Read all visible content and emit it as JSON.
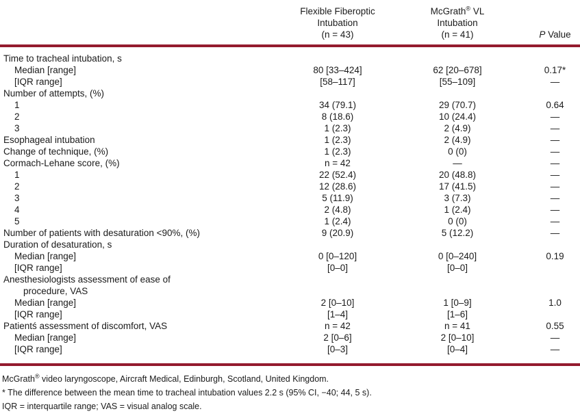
{
  "colors": {
    "rule": "#941B2E",
    "text": "#1a1a1a"
  },
  "table": {
    "header": {
      "ffi_lines": [
        "Flexible Fiberoptic",
        "Intubation",
        "(n = 43)"
      ],
      "mcg_name": "McGrath",
      "mcg_reg": "®",
      "mcg_rest": " VL",
      "mcg_line2": "Intubation",
      "mcg_line3": "(n = 41)",
      "p_italic": "P",
      "p_rest": " Value"
    },
    "rows": [
      {
        "label": "Time to tracheal intubation, s",
        "indent": 0,
        "ffi": "",
        "mcg": "",
        "p": ""
      },
      {
        "label": "Median [range]",
        "indent": 1,
        "ffi": "80 [33–424]",
        "mcg": "62 [20–678]",
        "p": "0.17*"
      },
      {
        "label": "[IQR range]",
        "indent": 1,
        "ffi": "[58–117]",
        "mcg": "[55–109]",
        "p": "—"
      },
      {
        "label": "Number of attempts, (%)",
        "indent": 0,
        "ffi": "",
        "mcg": "",
        "p": ""
      },
      {
        "label": "1",
        "indent": 1,
        "ffi": "34 (79.1)",
        "mcg": "29 (70.7)",
        "p": "0.64"
      },
      {
        "label": "2",
        "indent": 1,
        "ffi": "8 (18.6)",
        "mcg": "10 (24.4)",
        "p": "—"
      },
      {
        "label": "3",
        "indent": 1,
        "ffi": "1 (2.3)",
        "mcg": "2 (4.9)",
        "p": "—"
      },
      {
        "label": "Esophageal intubation",
        "indent": 0,
        "ffi": "1 (2.3)",
        "mcg": "2 (4.9)",
        "p": "—"
      },
      {
        "label": "Change of technique, (%)",
        "indent": 0,
        "ffi": "1 (2.3)",
        "mcg": "0 (0)",
        "p": "—"
      },
      {
        "label": "Cormach-Lehane score, (%)",
        "indent": 0,
        "ffi": "n = 42",
        "mcg": "—",
        "p": "—"
      },
      {
        "label": "1",
        "indent": 1,
        "ffi": "22 (52.4)",
        "mcg": "20 (48.8)",
        "p": "—"
      },
      {
        "label": "2",
        "indent": 1,
        "ffi": "12 (28.6)",
        "mcg": "17 (41.5)",
        "p": "—"
      },
      {
        "label": "3",
        "indent": 1,
        "ffi": "5 (11.9)",
        "mcg": "3 (7.3)",
        "p": "—"
      },
      {
        "label": "4",
        "indent": 1,
        "ffi": "2 (4.8)",
        "mcg": "1 (2.4)",
        "p": "—"
      },
      {
        "label": "5",
        "indent": 1,
        "ffi": "1 (2.4)",
        "mcg": "0 (0)",
        "p": "—"
      },
      {
        "label": "Number of patients with desaturation <90%, (%)",
        "indent": 0,
        "ffi": "9 (20.9)",
        "mcg": "5 (12.2)",
        "p": "—"
      },
      {
        "label": "Duration of desaturation, s",
        "indent": 0,
        "ffi": "",
        "mcg": "",
        "p": ""
      },
      {
        "label": "Median [range]",
        "indent": 1,
        "ffi": "0 [0–120]",
        "mcg": "0 [0–240]",
        "p": "0.19"
      },
      {
        "label": "[IQR range]",
        "indent": 1,
        "ffi": "[0–0]",
        "mcg": "[0–0]",
        "p": ""
      },
      {
        "label": "Anesthesiologists assessment of ease of",
        "indent": 0,
        "ffi": "",
        "mcg": "",
        "p": ""
      },
      {
        "label": "procedure, VAS",
        "indent": 2,
        "ffi": "",
        "mcg": "",
        "p": ""
      },
      {
        "label": "Median [range]",
        "indent": 1,
        "ffi": "2 [0–10]",
        "mcg": "1 [0–9]",
        "p": "1.0"
      },
      {
        "label": "[IQR range]",
        "indent": 1,
        "ffi": "[1–4]",
        "mcg": "[1–6]",
        "p": ""
      },
      {
        "label": "Patientś assessment of discomfort, VAS",
        "indent": 0,
        "ffi": "n = 42",
        "mcg": "n = 41",
        "p": "0.55"
      },
      {
        "label": "Median [range]",
        "indent": 1,
        "ffi": "2 [0–6]",
        "mcg": "2 [0–10]",
        "p": "—"
      },
      {
        "label": "[IQR range]",
        "indent": 1,
        "ffi": "[0–3]",
        "mcg": "[0–4]",
        "p": "—"
      }
    ]
  },
  "footnotes": {
    "line1_name": "McGrath",
    "line1_reg": "®",
    "line1_rest": " video laryngoscope, Aircraft Medical, Edinburgh, Scotland, United Kingdom.",
    "line2": "* The difference between the mean time to tracheal intubation values 2.2 s (95% CI, −40; 44, 5 s).",
    "line3": "IQR = interquartile range; VAS = visual analog scale."
  }
}
